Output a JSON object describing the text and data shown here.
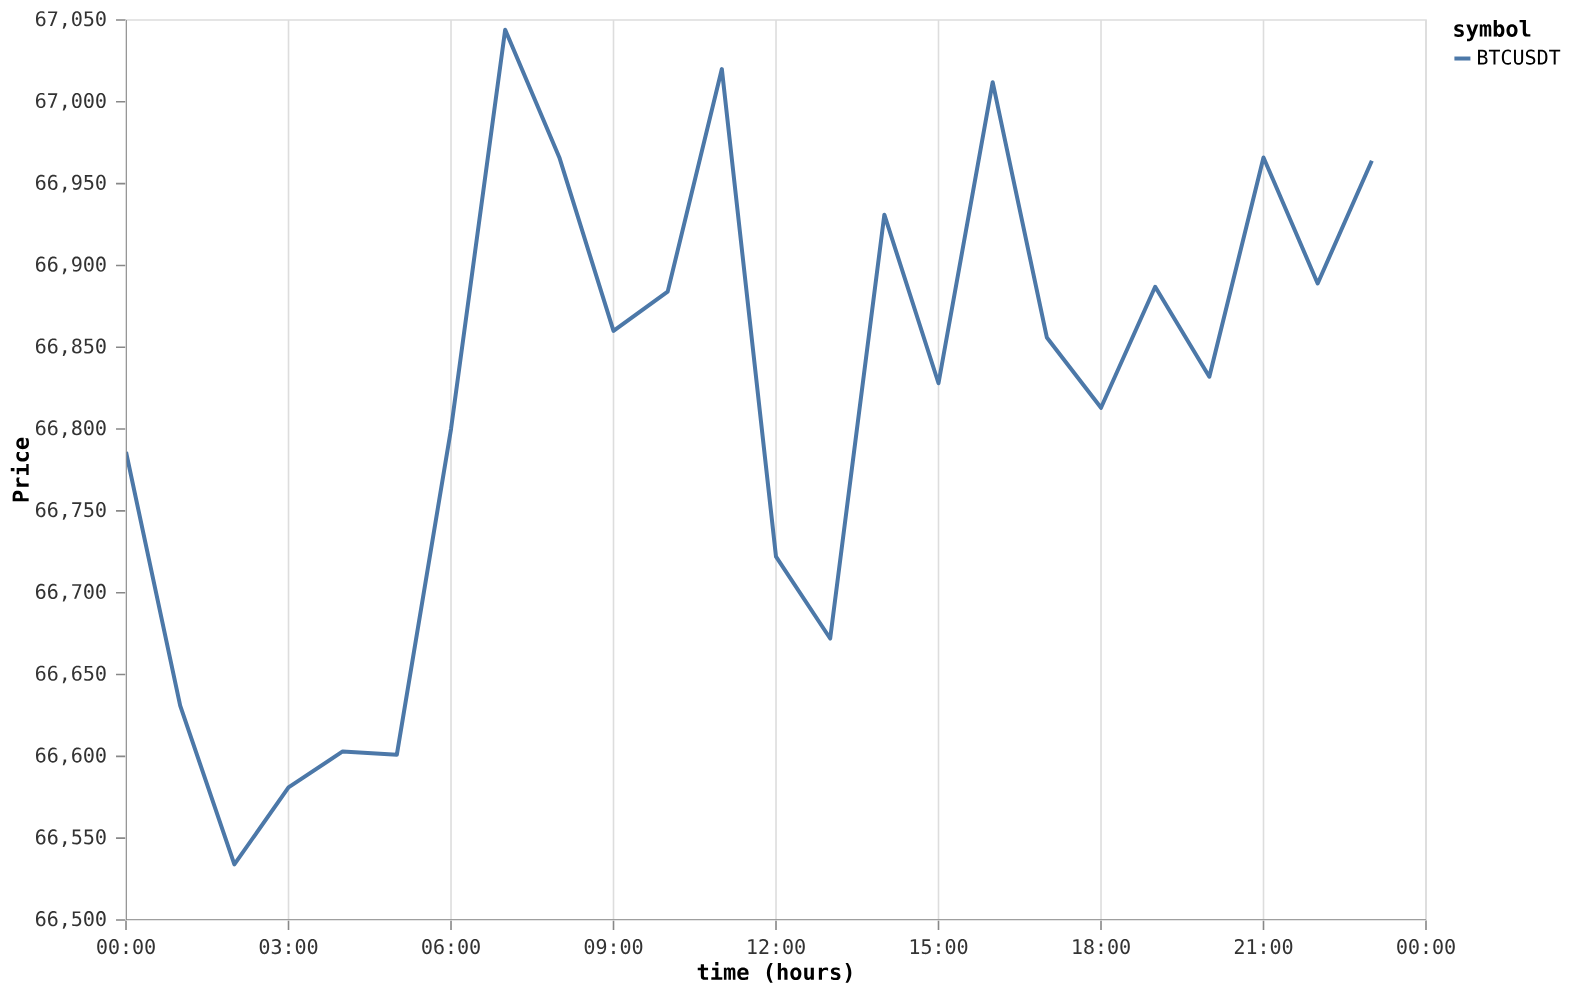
{
  "chart_data": {
    "type": "line",
    "xlabel": "time (hours)",
    "ylabel": "Price",
    "legend_title": "symbol",
    "x": [
      0,
      1,
      2,
      3,
      4,
      5,
      6,
      7,
      8,
      9,
      10,
      11,
      12,
      13,
      14,
      15,
      16,
      17,
      18,
      19,
      20,
      21,
      22,
      23
    ],
    "series": [
      {
        "name": "BTCUSDT",
        "color": "#4c78a8",
        "values": [
          66786,
          66631,
          66534,
          66581,
          66603,
          66601,
          66800,
          67044,
          66966,
          66860,
          66884,
          67020,
          66722,
          66672,
          66931,
          66828,
          67012,
          66856,
          66813,
          66887,
          66832,
          66966,
          66889,
          66964
        ]
      }
    ],
    "xlim": [
      0,
      24
    ],
    "xticks": [
      {
        "value": 0,
        "label": "00:00"
      },
      {
        "value": 3,
        "label": "03:00"
      },
      {
        "value": 6,
        "label": "06:00"
      },
      {
        "value": 9,
        "label": "09:00"
      },
      {
        "value": 12,
        "label": "12:00"
      },
      {
        "value": 15,
        "label": "15:00"
      },
      {
        "value": 18,
        "label": "18:00"
      },
      {
        "value": 21,
        "label": "21:00"
      },
      {
        "value": 24,
        "label": "00:00"
      }
    ],
    "ylim": [
      66500,
      67050
    ],
    "yticks": [
      {
        "value": 66500,
        "label": "66,500"
      },
      {
        "value": 66550,
        "label": "66,550"
      },
      {
        "value": 66600,
        "label": "66,600"
      },
      {
        "value": 66650,
        "label": "66,650"
      },
      {
        "value": 66700,
        "label": "66,700"
      },
      {
        "value": 66750,
        "label": "66,750"
      },
      {
        "value": 66800,
        "label": "66,800"
      },
      {
        "value": 66850,
        "label": "66,850"
      },
      {
        "value": 66900,
        "label": "66,900"
      },
      {
        "value": 66950,
        "label": "66,950"
      },
      {
        "value": 67000,
        "label": "67,000"
      },
      {
        "value": 67050,
        "label": "67,050"
      }
    ],
    "grid": "x",
    "legend": "right"
  }
}
